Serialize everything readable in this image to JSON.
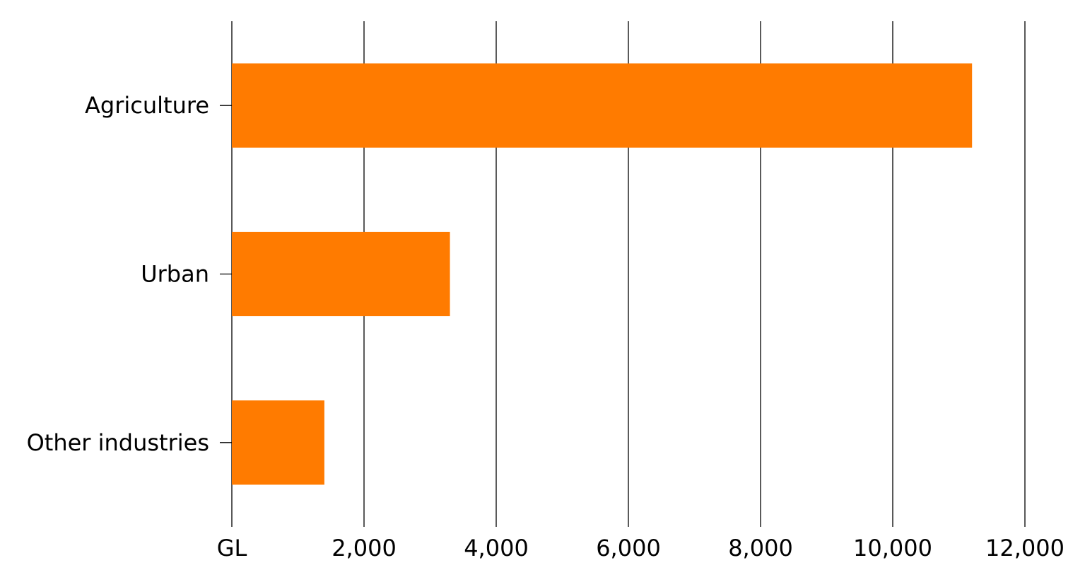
{
  "chart_data": {
    "type": "bar",
    "orientation": "horizontal",
    "categories": [
      "Agriculture",
      "Urban",
      "Other industries"
    ],
    "values": [
      11200,
      3300,
      1400
    ],
    "xlim": [
      0,
      12000
    ],
    "x_ticks": [
      0,
      2000,
      4000,
      6000,
      8000,
      10000,
      12000
    ],
    "x_tick_labels": [
      "GL",
      "2,000",
      "4,000",
      "6,000",
      "8,000",
      "10,000",
      "12,000"
    ],
    "grid": "vertical",
    "bar_color": "#ff7b00",
    "title": "",
    "xlabel": "",
    "ylabel": ""
  }
}
